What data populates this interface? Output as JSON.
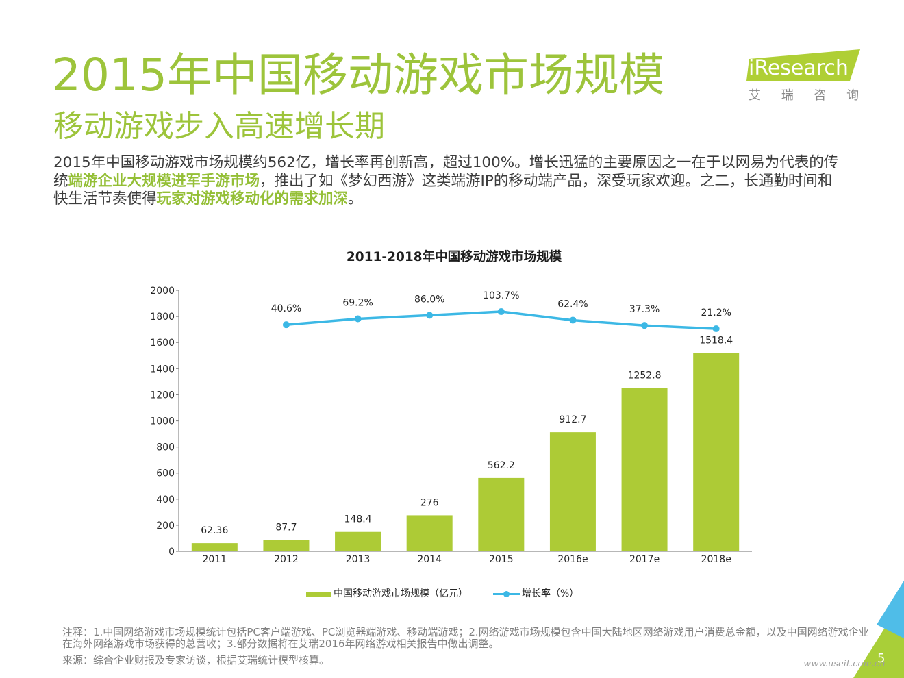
{
  "header": {
    "title": "2015年中国移动游戏市场规模",
    "subtitle": "移动游戏步入高速增长期"
  },
  "logo": {
    "brand": "iResearch",
    "tagline": "艾 瑞 咨 询"
  },
  "summary": {
    "line1": "2015年中国移动游戏市场规模约562亿，增长率再创新高，超过100%。增长迅猛的主要原因之一在于以网易为代表的传",
    "line2_before": "统",
    "line2_highlight": "端游企业大规模进军手游市场",
    "line2_after": "，推出了如《梦幻西游》这类端游IP的移动端产品，深受玩家欢迎。之二，长通勤时间和",
    "line3_before": "快生活节奏使得",
    "line3_highlight": "玩家对游戏移动化的需求加深",
    "line3_after": "。"
  },
  "chart_data": {
    "type": "bar",
    "title": "2011-2018年中国移动游戏市场规模",
    "categories": [
      "2011",
      "2012",
      "2013",
      "2014",
      "2015",
      "2016e",
      "2017e",
      "2018e"
    ],
    "series": [
      {
        "name": "中国移动游戏市场规模（亿元）",
        "type": "bar",
        "values": [
          62.36,
          87.7,
          148.4,
          276,
          562.2,
          912.7,
          1252.8,
          1518.4
        ]
      },
      {
        "name": "增长率（%）",
        "type": "line",
        "values": [
          null,
          40.6,
          69.2,
          86.0,
          103.7,
          62.4,
          37.3,
          21.2
        ]
      }
    ],
    "xlabel": "",
    "ylabel": "",
    "ylim": [
      0,
      2000
    ],
    "yticks": [
      0,
      200,
      400,
      600,
      800,
      1000,
      1200,
      1400,
      1600,
      1800,
      2000
    ],
    "grid": false,
    "legend": "bottom"
  },
  "footer": {
    "note_line1": "注释：1.中国网络游戏市场规模统计包括PC客户端游戏、PC浏览器端游戏、移动端游戏；2.网络游戏市场规模包含中国大陆地区网络游戏用户消费总金额，以及中国网络游戏企业",
    "note_line2": "在海外网络游戏市场获得的总营收；3.部分数据将在艾瑞2016年网络游戏相关报告中做出调整。",
    "source": "来源：综合企业财报及专家访谈，根据艾瑞统计模型核算。"
  },
  "page": {
    "number": "5",
    "watermark": "www.useit.com.cn"
  },
  "colors": {
    "accent": "#9DC43B",
    "highlight": "#94BF36",
    "text": "#3C3C3C",
    "bar": "#ADCB36",
    "line": "#3CB8E5",
    "axis": "#8C8C8C",
    "note": "#808080",
    "logo": "#AFCF35",
    "corner_green": "#A9CF38",
    "corner_blue": "#4FBDE8"
  }
}
